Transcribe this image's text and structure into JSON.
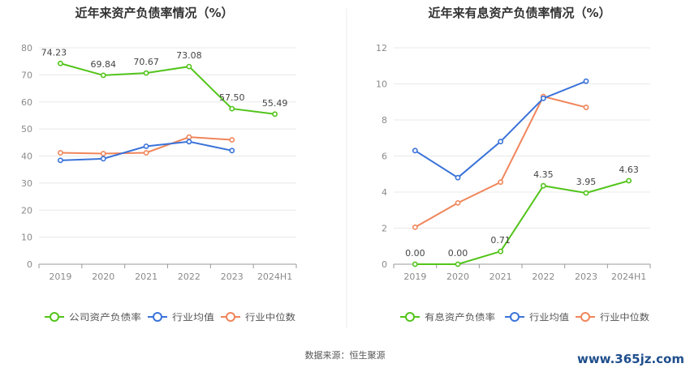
{
  "source_label": "数据来源：恒生聚源",
  "watermark": "www.365jz.com",
  "chart_data": [
    {
      "type": "line",
      "title": "近年来资产负债率情况（%）",
      "categories": [
        "2019",
        "2020",
        "2021",
        "2022",
        "2023",
        "2024H1"
      ],
      "ylim": [
        0,
        80
      ],
      "yticks": [
        0,
        10,
        20,
        30,
        40,
        50,
        60,
        70,
        80
      ],
      "grid": true,
      "legend_position": "bottom",
      "series": [
        {
          "name": "公司资产负债率",
          "color": "#52c41a",
          "values": [
            74.23,
            69.84,
            70.67,
            73.08,
            57.5,
            55.49
          ],
          "labels": [
            "74.23",
            "69.84",
            "70.67",
            "73.08",
            "57.50",
            "55.49"
          ]
        },
        {
          "name": "行业均值",
          "color": "#3a73d9",
          "values": [
            38.4,
            39.0,
            43.6,
            45.3,
            42.0,
            null
          ]
        },
        {
          "name": "行业中位数",
          "color": "#f0855a",
          "values": [
            41.2,
            40.9,
            41.2,
            47.0,
            46.0,
            null
          ]
        }
      ]
    },
    {
      "type": "line",
      "title": "近年来有息资产负债率情况（%）",
      "categories": [
        "2019",
        "2020",
        "2021",
        "2022",
        "2023",
        "2024H1"
      ],
      "ylim": [
        0,
        12
      ],
      "yticks": [
        0,
        2,
        4,
        6,
        8,
        10,
        12
      ],
      "grid": true,
      "legend_position": "bottom",
      "series": [
        {
          "name": "有息资产负债率",
          "color": "#52c41a",
          "values": [
            0.0,
            0.0,
            0.71,
            4.35,
            3.95,
            4.63
          ],
          "labels": [
            "0.00",
            "0.00",
            "0.71",
            "4.35",
            "3.95",
            "4.63"
          ]
        },
        {
          "name": "行业均值",
          "color": "#3a73d9",
          "values": [
            6.3,
            4.8,
            6.8,
            9.2,
            10.15,
            null
          ]
        },
        {
          "name": "行业中位数",
          "color": "#f0855a",
          "values": [
            2.05,
            3.4,
            4.55,
            9.3,
            8.7,
            null
          ]
        }
      ]
    }
  ]
}
